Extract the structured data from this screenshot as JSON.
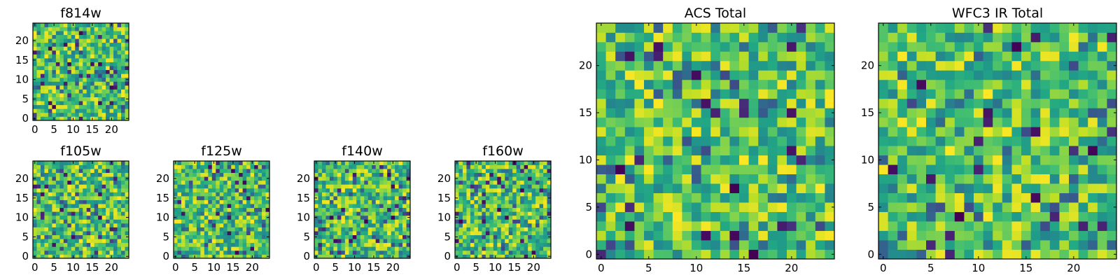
{
  "chart_data": [
    {
      "type": "heatmap",
      "title": "f814w",
      "grid_size": 25,
      "xlim": [
        -0.5,
        24.5
      ],
      "ylim": [
        -0.5,
        24.5
      ],
      "xticks": [
        0,
        5,
        10,
        15,
        20
      ],
      "yticks": [
        0,
        5,
        10,
        15,
        20
      ],
      "colormap": "viridis",
      "seed": 814
    },
    {
      "type": "heatmap",
      "title": "f105w",
      "grid_size": 25,
      "xlim": [
        -0.5,
        24.5
      ],
      "ylim": [
        -0.5,
        24.5
      ],
      "xticks": [
        0,
        5,
        10,
        15,
        20
      ],
      "yticks": [
        0,
        5,
        10,
        15,
        20
      ],
      "colormap": "viridis",
      "seed": 105
    },
    {
      "type": "heatmap",
      "title": "f125w",
      "grid_size": 25,
      "xlim": [
        -0.5,
        24.5
      ],
      "ylim": [
        -0.5,
        24.5
      ],
      "xticks": [
        0,
        5,
        10,
        15,
        20
      ],
      "yticks": [
        0,
        5,
        10,
        15,
        20
      ],
      "colormap": "viridis",
      "seed": 125
    },
    {
      "type": "heatmap",
      "title": "f140w",
      "grid_size": 25,
      "xlim": [
        -0.5,
        24.5
      ],
      "ylim": [
        -0.5,
        24.5
      ],
      "xticks": [
        0,
        5,
        10,
        15,
        20
      ],
      "yticks": [
        0,
        5,
        10,
        15,
        20
      ],
      "colormap": "viridis",
      "seed": 140
    },
    {
      "type": "heatmap",
      "title": "f160w",
      "grid_size": 25,
      "xlim": [
        -0.5,
        24.5
      ],
      "ylim": [
        -0.5,
        24.5
      ],
      "xticks": [
        0,
        5,
        10,
        15,
        20
      ],
      "yticks": [
        0,
        5,
        10,
        15,
        20
      ],
      "colormap": "viridis",
      "seed": 160
    },
    {
      "type": "heatmap",
      "title": "ACS Total",
      "grid_size": 25,
      "xlim": [
        -0.5,
        24.5
      ],
      "ylim": [
        -0.5,
        24.5
      ],
      "xticks": [
        0,
        5,
        10,
        15,
        20
      ],
      "yticks": [
        0,
        5,
        10,
        15,
        20
      ],
      "colormap": "viridis",
      "seed": 901
    },
    {
      "type": "heatmap",
      "title": "WFC3 IR Total",
      "grid_size": 25,
      "xlim": [
        -0.5,
        24.5
      ],
      "ylim": [
        -0.5,
        24.5
      ],
      "xticks": [
        0,
        5,
        10,
        15,
        20
      ],
      "yticks": [
        0,
        5,
        10,
        15,
        20
      ],
      "colormap": "viridis",
      "seed": 902
    }
  ],
  "colors": {
    "viridis_low": "#440154",
    "viridis_mid": "#21918c",
    "viridis_high": "#fde725"
  }
}
